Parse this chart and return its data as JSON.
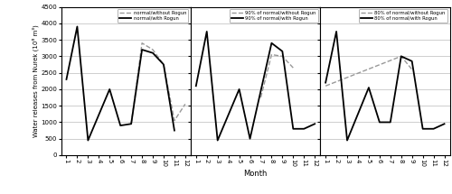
{
  "months": [
    1,
    2,
    3,
    4,
    5,
    6,
    7,
    8,
    9,
    10,
    11,
    12
  ],
  "panel1": {
    "without_rogun": [
      null,
      null,
      null,
      null,
      null,
      null,
      950,
      3400,
      3200,
      2750,
      1050,
      1550
    ],
    "with_rogun": [
      2300,
      3900,
      450,
      null,
      2000,
      900,
      950,
      3200,
      3100,
      2750,
      750,
      null
    ],
    "legend1": "normal/without Rogun",
    "legend2": "normal/with Rogun"
  },
  "panel2": {
    "without_rogun": [
      null,
      null,
      null,
      null,
      null,
      null,
      1750,
      3050,
      3000,
      2650,
      null,
      null
    ],
    "with_rogun": [
      2100,
      3750,
      450,
      null,
      2000,
      500,
      1950,
      3400,
      3150,
      800,
      800,
      950
    ],
    "legend1": "90% of normal/without Rogun",
    "legend2": "90% of normal/with Rogun"
  },
  "panel3": {
    "without_rogun": [
      2100,
      null,
      null,
      null,
      null,
      null,
      null,
      3000,
      2600,
      null,
      null,
      null
    ],
    "with_rogun": [
      2200,
      3750,
      450,
      null,
      2050,
      1000,
      1000,
      3000,
      2850,
      800,
      800,
      950
    ],
    "legend1": "80% of normal/without Rogun",
    "legend2": "80% of normal/with Rogun"
  },
  "ylim": [
    0,
    4500
  ],
  "yticks": [
    0,
    500,
    1000,
    1500,
    2000,
    2500,
    3000,
    3500,
    4000,
    4500
  ],
  "ylabel": "Water releases from Nurek (10⁶ m³)",
  "xlabel": "Month",
  "color_dashed": "#999999",
  "color_solid": "#000000"
}
